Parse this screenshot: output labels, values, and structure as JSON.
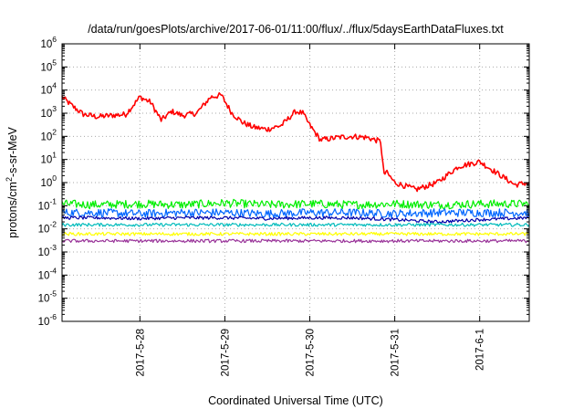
{
  "chart_data": {
    "type": "line",
    "title": "/data/run/goesPlots/archive/2017-06-01/11:00/flux/../flux/5daysEarthDataFluxes.txt",
    "xlabel": "Coordinated Universal Time (UTC)",
    "ylabel": {
      "base": "protons/cm",
      "sup": "2",
      "rest": "-s-sr-MeV"
    },
    "yscale": "log",
    "ylim": [
      1e-06,
      1000000.0
    ],
    "y_ticks": [
      {
        "exp": "-6"
      },
      {
        "exp": "-5"
      },
      {
        "exp": "-4"
      },
      {
        "exp": "-3"
      },
      {
        "exp": "-2"
      },
      {
        "exp": "-1"
      },
      {
        "exp": "0"
      },
      {
        "exp": "1"
      },
      {
        "exp": "2"
      },
      {
        "exp": "3"
      },
      {
        "exp": "4"
      },
      {
        "exp": "5"
      },
      {
        "exp": "6"
      }
    ],
    "y_tick_base": "10",
    "xlim": [
      "2017-05-27T02:00",
      "2017-06-01T14:00"
    ],
    "x_ticks": [
      {
        "label": "2017-5-28",
        "t": "2017-05-28T00:00"
      },
      {
        "label": "2017-5-29",
        "t": "2017-05-29T00:00"
      },
      {
        "label": "2017-5-30",
        "t": "2017-05-30T00:00"
      },
      {
        "label": "2017-5-31",
        "t": "2017-05-31T00:00"
      },
      {
        "label": "2017-6-1",
        "t": "2017-06-01T00:00"
      }
    ],
    "grid": true,
    "legend": "none",
    "series": [
      {
        "color": "#ff0000",
        "x": [
          "2017-05-27T02:00",
          "2017-05-27T05:00",
          "2017-05-27T08:00",
          "2017-05-27T12:00",
          "2017-05-27T16:00",
          "2017-05-27T20:00",
          "2017-05-28T00:00",
          "2017-05-28T03:00",
          "2017-05-28T06:00",
          "2017-05-28T09:00",
          "2017-05-28T12:00",
          "2017-05-28T16:00",
          "2017-05-28T20:00",
          "2017-05-28T23:00",
          "2017-05-29T02:00",
          "2017-05-29T05:00",
          "2017-05-29T08:00",
          "2017-05-29T12:00",
          "2017-05-29T16:00",
          "2017-05-29T20:00",
          "2017-05-29T22:00",
          "2017-05-30T00:00",
          "2017-05-30T03:00",
          "2017-05-30T06:00",
          "2017-05-30T08:00",
          "2017-05-30T12:00",
          "2017-05-30T16:00",
          "2017-05-30T20:00",
          "2017-05-30T21:00",
          "2017-05-30T21:30",
          "2017-05-31T00:00",
          "2017-05-31T06:00",
          "2017-05-31T12:00",
          "2017-05-31T18:00",
          "2017-06-01T00:00",
          "2017-06-01T06:00",
          "2017-06-01T10:00",
          "2017-06-01T14:00"
        ],
        "y": [
          5000,
          2000,
          900,
          700,
          800,
          900,
          5000,
          3000,
          500,
          1200,
          800,
          1000,
          5000,
          6000,
          1000,
          400,
          250,
          200,
          300,
          1200,
          1000,
          300,
          70,
          80,
          90,
          100,
          90,
          60,
          2,
          3,
          1,
          0.5,
          1,
          5,
          8,
          2,
          0.8,
          1
        ]
      },
      {
        "color": "#00ee00",
        "x": [
          "2017-05-27T02:00",
          "2017-05-27T12:00",
          "2017-05-28T00:00",
          "2017-05-28T12:00",
          "2017-05-29T00:00",
          "2017-05-29T12:00",
          "2017-05-30T00:00",
          "2017-05-30T12:00",
          "2017-05-31T00:00",
          "2017-05-31T12:00",
          "2017-06-01T00:00",
          "2017-06-01T14:00"
        ],
        "y": [
          0.12,
          0.11,
          0.12,
          0.11,
          0.13,
          0.11,
          0.12,
          0.11,
          0.12,
          0.11,
          0.12,
          0.12
        ]
      },
      {
        "color": "#0066ff",
        "x": [
          "2017-05-27T02:00",
          "2017-05-27T12:00",
          "2017-05-28T00:00",
          "2017-05-28T12:00",
          "2017-05-29T00:00",
          "2017-05-29T12:00",
          "2017-05-30T00:00",
          "2017-05-30T12:00",
          "2017-05-31T00:00",
          "2017-05-31T12:00",
          "2017-06-01T00:00",
          "2017-06-01T14:00"
        ],
        "y": [
          0.05,
          0.05,
          0.045,
          0.05,
          0.05,
          0.045,
          0.05,
          0.05,
          0.045,
          0.05,
          0.05,
          0.05
        ]
      },
      {
        "color": "#0000aa",
        "x": [
          "2017-05-27T02:00",
          "2017-05-27T12:00",
          "2017-05-28T00:00",
          "2017-05-28T12:00",
          "2017-05-29T00:00",
          "2017-05-29T12:00",
          "2017-05-30T00:00",
          "2017-05-30T12:00",
          "2017-05-31T00:00",
          "2017-05-31T12:00",
          "2017-06-01T00:00",
          "2017-06-01T14:00"
        ],
        "y": [
          0.03,
          0.03,
          0.028,
          0.03,
          0.03,
          0.028,
          0.03,
          0.03,
          0.025,
          0.02,
          0.025,
          0.03
        ]
      },
      {
        "color": "#00bbbb",
        "x": [
          "2017-05-27T02:00",
          "2017-05-27T12:00",
          "2017-05-28T00:00",
          "2017-05-28T12:00",
          "2017-05-29T00:00",
          "2017-05-29T12:00",
          "2017-05-30T00:00",
          "2017-05-30T12:00",
          "2017-05-31T00:00",
          "2017-05-31T12:00",
          "2017-06-01T00:00",
          "2017-06-01T14:00"
        ],
        "y": [
          0.015,
          0.015,
          0.015,
          0.015,
          0.015,
          0.015,
          0.015,
          0.015,
          0.015,
          0.015,
          0.015,
          0.015
        ]
      },
      {
        "color": "#ffff00",
        "x": [
          "2017-05-27T02:00",
          "2017-05-27T12:00",
          "2017-05-28T00:00",
          "2017-05-28T12:00",
          "2017-05-29T00:00",
          "2017-05-29T12:00",
          "2017-05-30T00:00",
          "2017-05-30T12:00",
          "2017-05-31T00:00",
          "2017-05-31T12:00",
          "2017-06-01T00:00",
          "2017-06-01T14:00"
        ],
        "y": [
          0.006,
          0.006,
          0.006,
          0.006,
          0.006,
          0.006,
          0.006,
          0.006,
          0.006,
          0.006,
          0.006,
          0.006
        ]
      },
      {
        "color": "#993399",
        "x": [
          "2017-05-27T02:00",
          "2017-05-27T12:00",
          "2017-05-28T00:00",
          "2017-05-28T12:00",
          "2017-05-29T00:00",
          "2017-05-29T12:00",
          "2017-05-30T00:00",
          "2017-05-30T12:00",
          "2017-05-31T00:00",
          "2017-05-31T12:00",
          "2017-06-01T00:00",
          "2017-06-01T14:00"
        ],
        "y": [
          0.003,
          0.003,
          0.003,
          0.003,
          0.003,
          0.003,
          0.003,
          0.003,
          0.003,
          0.003,
          0.003,
          0.003
        ]
      }
    ]
  }
}
